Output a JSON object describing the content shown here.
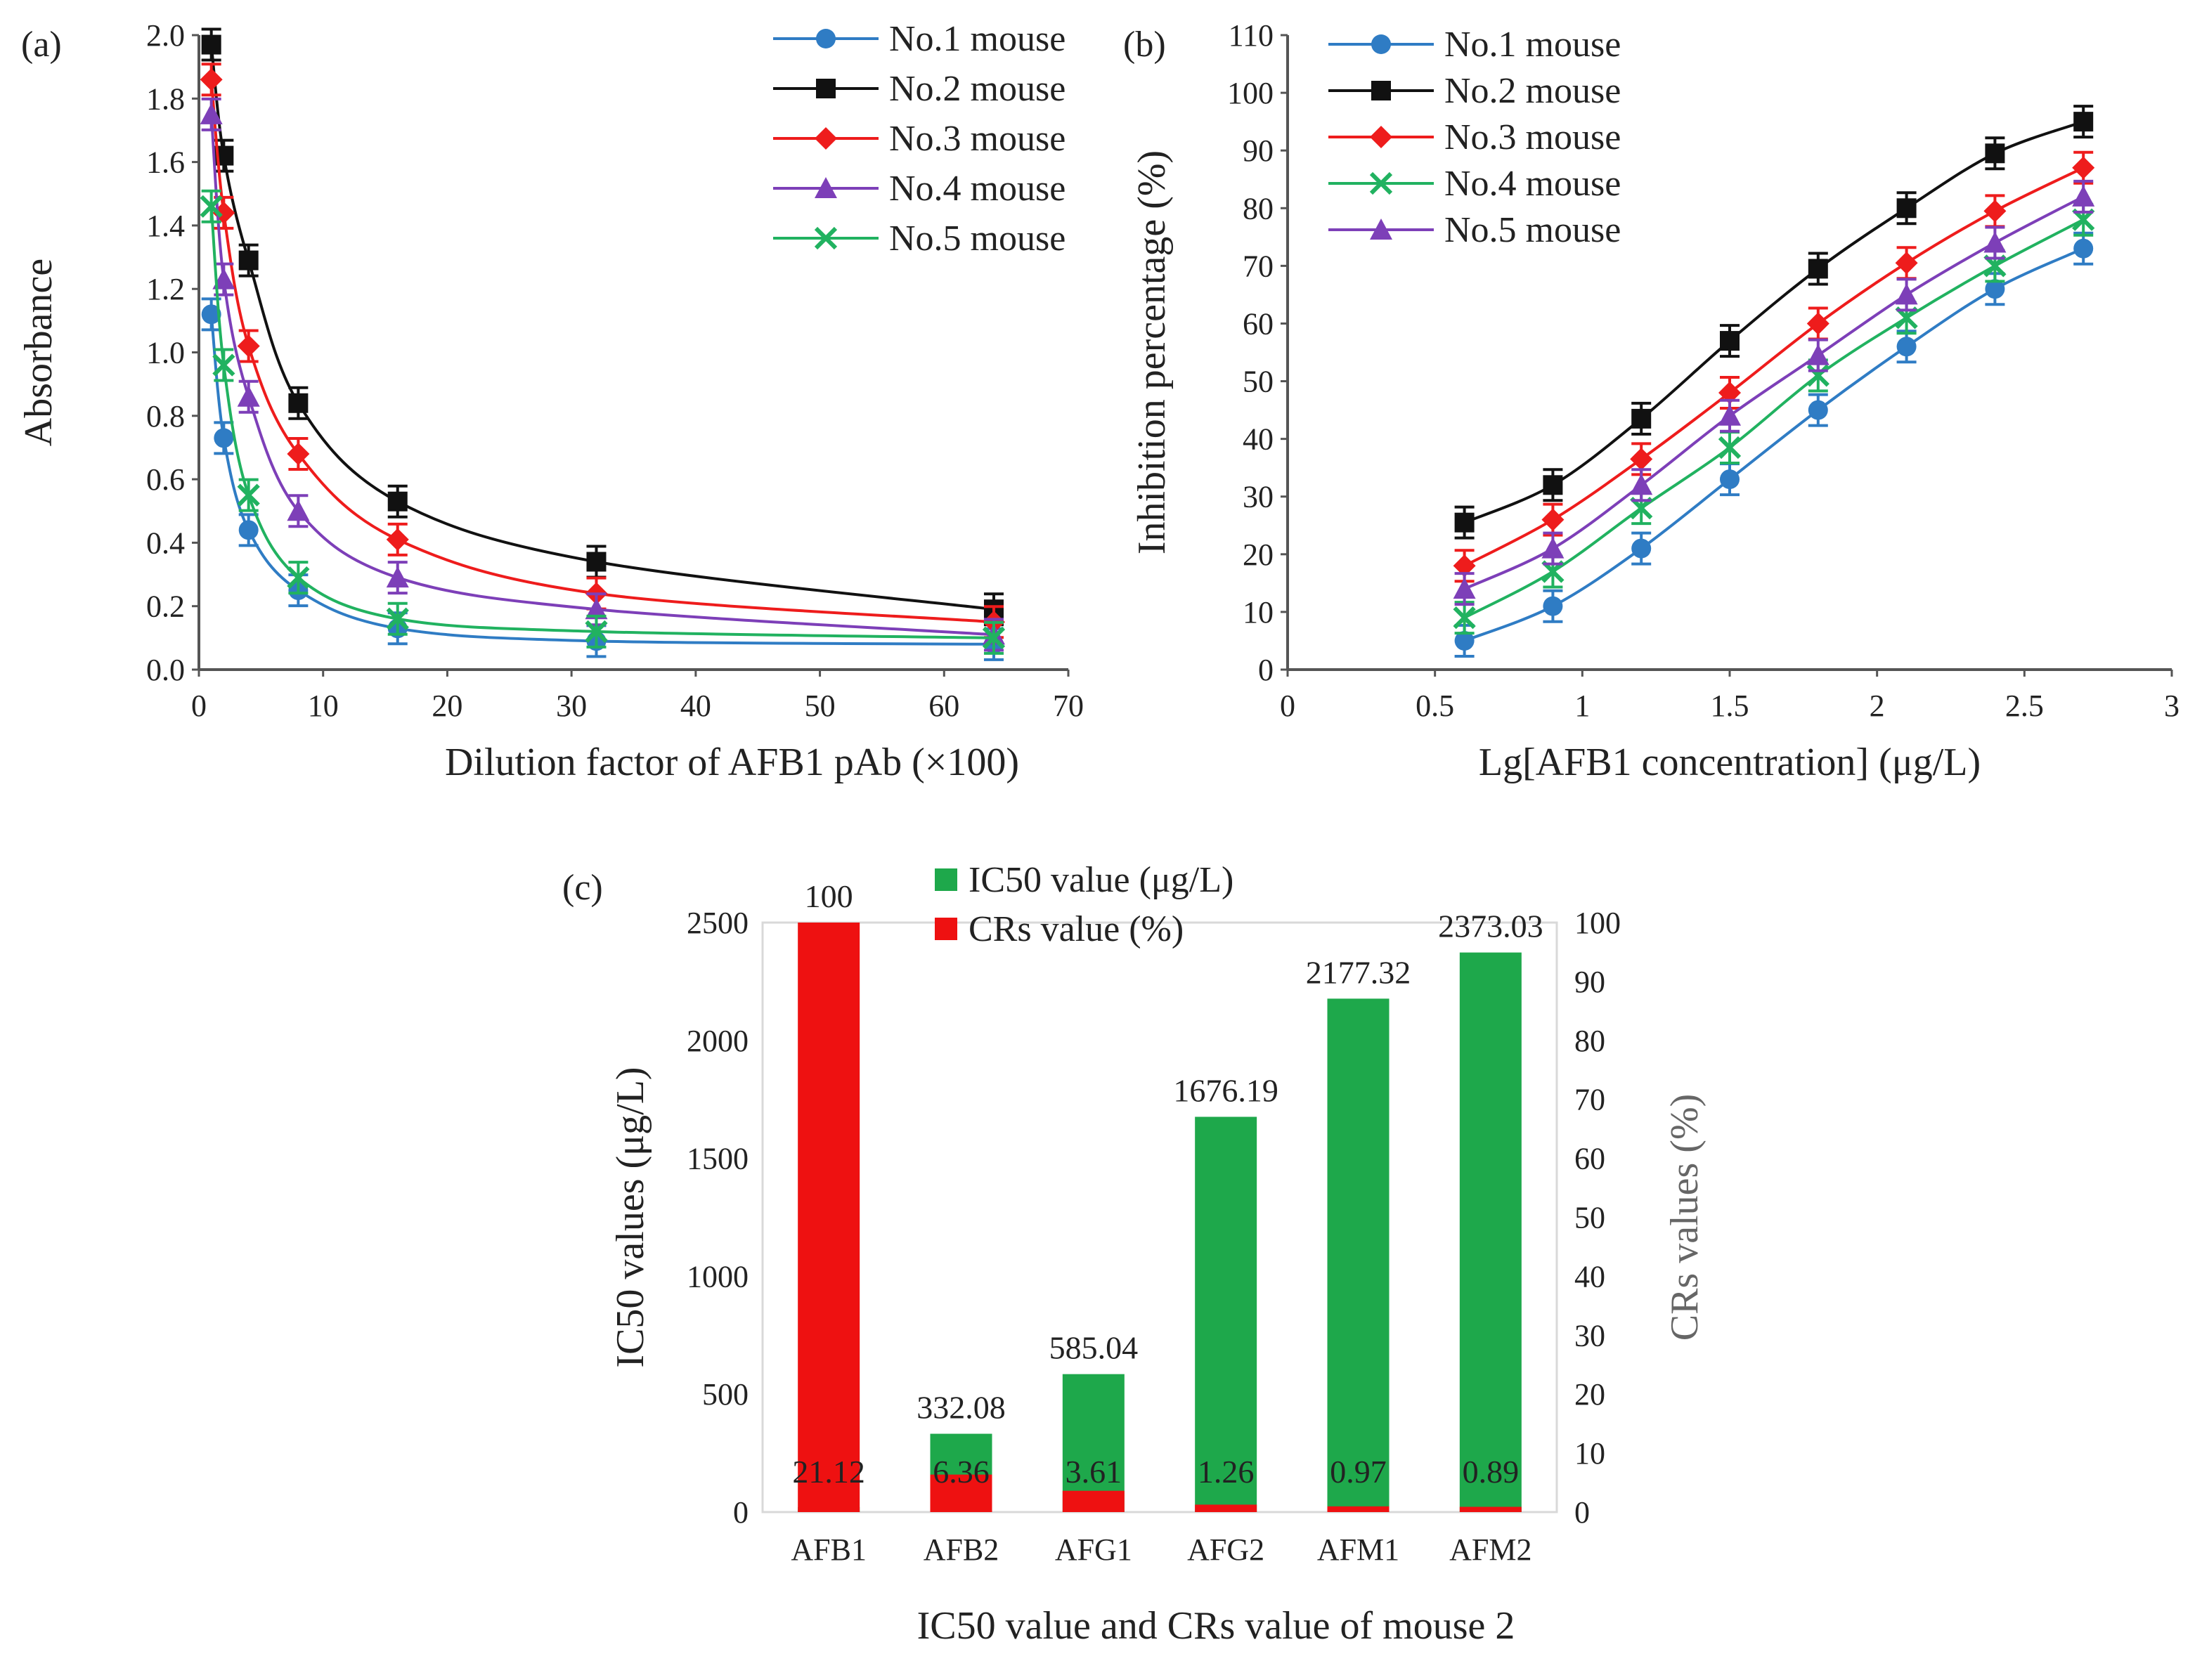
{
  "colors": {
    "mouse1": "#2f7cc4",
    "mouse2": "#111111",
    "mouse3": "#ee1c1c",
    "mouse4": "#7d3fb8",
    "mouse5": "#21b260",
    "ic50": "#1ea84b",
    "crs": "#ee1111"
  },
  "chart_data": [
    {
      "type": "line",
      "panel_label": "(a)",
      "xlabel": "Dilution factor of AFB1 pAb (×100)",
      "ylabel": "Absorbance",
      "xlim": [
        0,
        70
      ],
      "ylim": [
        0,
        2.0
      ],
      "xticks": [
        "0",
        "10",
        "20",
        "30",
        "40",
        "50",
        "60",
        "70"
      ],
      "yticks": [
        "0.0",
        "0.2",
        "0.4",
        "0.6",
        "0.8",
        "1.0",
        "1.2",
        "1.4",
        "1.6",
        "1.8",
        "2.0"
      ],
      "x": [
        1,
        2,
        4,
        8,
        16,
        32,
        64
      ],
      "legend": "top-right",
      "series": [
        {
          "name": "No.1 mouse",
          "marker": "circle",
          "color_key": "mouse1",
          "values": [
            1.12,
            0.73,
            0.44,
            0.25,
            0.13,
            0.09,
            0.08
          ]
        },
        {
          "name": "No.2 mouse",
          "marker": "square",
          "color_key": "mouse2",
          "values": [
            1.97,
            1.62,
            1.29,
            0.84,
            0.53,
            0.34,
            0.19
          ]
        },
        {
          "name": "No.3 mouse",
          "marker": "diamond",
          "color_key": "mouse3",
          "values": [
            1.86,
            1.44,
            1.02,
            0.68,
            0.41,
            0.24,
            0.15
          ]
        },
        {
          "name": "No.4 mouse",
          "marker": "triangle",
          "color_key": "mouse4",
          "values": [
            1.75,
            1.23,
            0.86,
            0.5,
            0.29,
            0.19,
            0.11
          ]
        },
        {
          "name": "No.5 mouse",
          "marker": "x",
          "color_key": "mouse5",
          "values": [
            1.46,
            0.96,
            0.55,
            0.29,
            0.16,
            0.12,
            0.1
          ]
        }
      ]
    },
    {
      "type": "line",
      "panel_label": "(b)",
      "xlabel": "Lg[AFB1 concentration] (μg/L)",
      "ylabel": "Inhibition percentage (%)",
      "xlim": [
        0,
        3
      ],
      "ylim": [
        0,
        110
      ],
      "xticks": [
        "0",
        "0.5",
        "1",
        "1.5",
        "2",
        "2.5",
        "3"
      ],
      "yticks": [
        "0",
        "10",
        "20",
        "30",
        "40",
        "50",
        "60",
        "70",
        "80",
        "90",
        "100",
        "110"
      ],
      "x": [
        0.6,
        0.9,
        1.2,
        1.5,
        1.8,
        2.1,
        2.4,
        2.7
      ],
      "legend": "top-left",
      "series": [
        {
          "name": "No.1 mouse",
          "marker": "circle",
          "color_key": "mouse1",
          "values": [
            5,
            11,
            21,
            33,
            45,
            56,
            66,
            73
          ]
        },
        {
          "name": "No.2 mouse",
          "marker": "square",
          "color_key": "mouse2",
          "values": [
            25.5,
            32,
            43.5,
            57,
            69.5,
            80,
            89.5,
            95
          ]
        },
        {
          "name": "No.3 mouse",
          "marker": "diamond",
          "color_key": "mouse3",
          "values": [
            18,
            26,
            36.5,
            48,
            60,
            70.5,
            79.5,
            87
          ]
        },
        {
          "name": "No.4 mouse",
          "marker": "x",
          "color_key": "mouse5",
          "values": [
            9,
            17,
            28,
            38.5,
            51,
            61,
            70,
            78
          ]
        },
        {
          "name": "No.5 mouse",
          "marker": "triangle",
          "color_key": "mouse4",
          "values": [
            14,
            21,
            32,
            44,
            54.5,
            65,
            74,
            82
          ]
        }
      ]
    },
    {
      "type": "bar",
      "panel_label": "(c)",
      "xlabel": "IC50 value and CRs value of mouse 2",
      "ylabel": "IC50 values (μg/L)",
      "ylabel_right": "CRs values (%)",
      "ylim": [
        0,
        2500
      ],
      "ylim_right": [
        0,
        100
      ],
      "yticks": [
        "0",
        "500",
        "1000",
        "1500",
        "2000",
        "2500"
      ],
      "yticks_right": [
        "0",
        "10",
        "20",
        "30",
        "40",
        "50",
        "60",
        "70",
        "80",
        "90",
        "100"
      ],
      "categories": [
        "AFB1",
        "AFB2",
        "AFG1",
        "AFG2",
        "AFM1",
        "AFM2"
      ],
      "legend": "top-center",
      "series": [
        {
          "name": "IC50 value (μg/L)",
          "axis": "left",
          "color_key": "ic50",
          "values": [
            21.12,
            332.08,
            585.04,
            1676.19,
            2177.32,
            2373.03
          ],
          "labels": [
            "21.12",
            "332.08",
            "585.04",
            "1676.19",
            "2177.32",
            "2373.03"
          ]
        },
        {
          "name": "CRs value (%)",
          "axis": "right",
          "color_key": "crs",
          "values": [
            100,
            6.36,
            3.61,
            1.26,
            0.97,
            0.89
          ],
          "labels": [
            "100",
            "6.36",
            "3.61",
            "1.26",
            "0.97",
            "0.89"
          ]
        }
      ]
    }
  ]
}
